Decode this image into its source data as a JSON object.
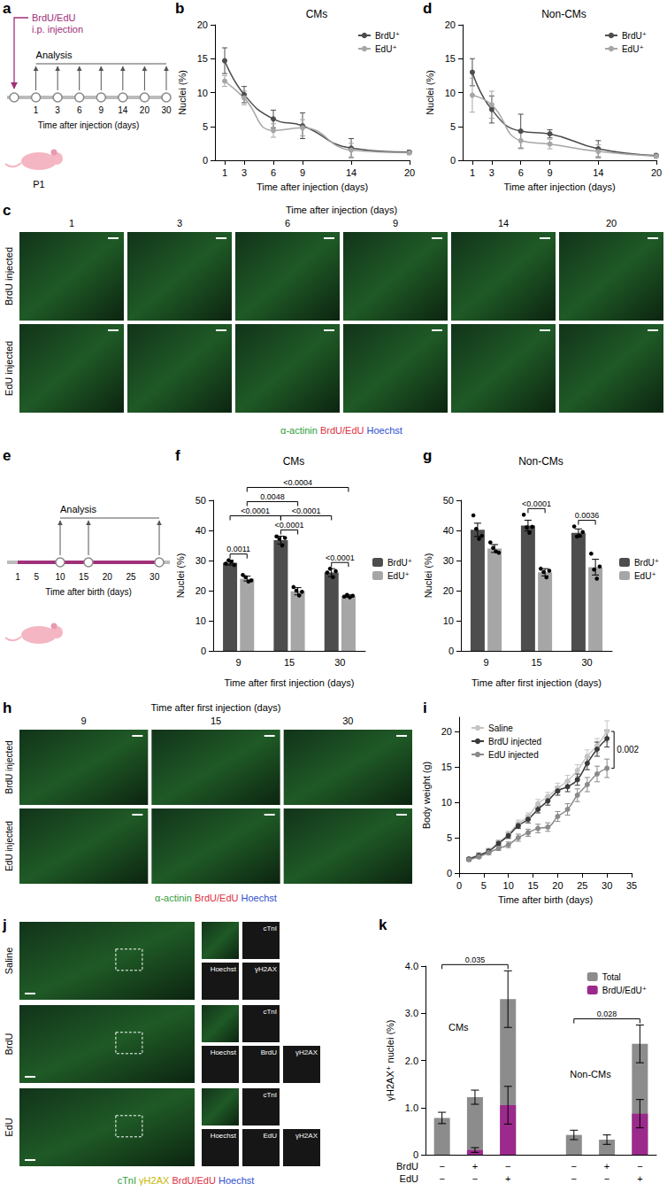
{
  "diagram_a": {
    "letter": "a",
    "injection_lines": [
      "BrdU/EdU",
      "i.p. injection"
    ],
    "analysis": "Analysis",
    "timepoints": [
      "1",
      "3",
      "6",
      "9",
      "14",
      "20",
      "30"
    ],
    "axis_label": "Time after injection (days)",
    "animal": "P1"
  },
  "images_c": {
    "letter": "c",
    "header": "Time after injection (days)",
    "columns": [
      "1",
      "3",
      "6",
      "9",
      "14",
      "20"
    ],
    "rows": [
      "BrdU injected",
      "EdU injected"
    ],
    "caption": [
      {
        "text": "α-actinin",
        "color": "#2f9e3a"
      },
      {
        "text": "BrdU/EdU",
        "color": "#e0303f"
      },
      {
        "text": "Hoechst",
        "color": "#2f4fd0"
      }
    ]
  },
  "diagram_e": {
    "letter": "e",
    "analysis": "Analysis",
    "ticks": [
      1,
      5,
      10,
      15,
      20,
      25,
      30
    ],
    "analysis_days": [
      10,
      16,
      31
    ],
    "injection_days": [
      1,
      31
    ],
    "axis_label": "Time after birth (days)"
  },
  "images_h": {
    "letter": "h",
    "header": "Time after first injection (days)",
    "columns": [
      "9",
      "15",
      "30"
    ],
    "rows": [
      "BrdU injected",
      "EdU injected"
    ],
    "caption": [
      {
        "text": "α-actinin",
        "color": "#2f9e3a"
      },
      {
        "text": "BrdU/EdU",
        "color": "#e0303f"
      },
      {
        "text": "Hoechst",
        "color": "#2f4fd0"
      }
    ]
  },
  "images_j": {
    "letter": "j",
    "rows": [
      {
        "label": "Saline",
        "insets": [
          "cTnI",
          "Hoechst",
          "γH2AX"
        ]
      },
      {
        "label": "BrdU",
        "insets": [
          "cTnI",
          "Hoechst",
          "BrdU",
          "γH2AX"
        ]
      },
      {
        "label": "EdU",
        "insets": [
          "cTnI",
          "Hoechst",
          "EdU",
          "γH2AX"
        ]
      }
    ],
    "caption": [
      {
        "text": "cTnI",
        "color": "#2f9e3a"
      },
      {
        "text": "γH2AX",
        "color": "#c9b800"
      },
      {
        "text": "BrdU/EdU",
        "color": "#e0303f"
      },
      {
        "text": "Hoechst",
        "color": "#2f4fd0"
      }
    ]
  },
  "chart_data": [
    {
      "letter": "b",
      "type": "line",
      "title": "CMs",
      "x_label": "Time after injection (days)",
      "y_label": "Nuclei (%)",
      "x": [
        1,
        3,
        6,
        9,
        14,
        20
      ],
      "xlim": [
        0,
        20
      ],
      "xticks": [
        1,
        3,
        6,
        9,
        14,
        20
      ],
      "ylim": [
        0,
        20
      ],
      "yticks": [
        0,
        5,
        10,
        15,
        20
      ],
      "grid": false,
      "legend": "top-right",
      "marker": "circle",
      "series": [
        {
          "name": "BrdU⁺",
          "color": "#4d4d4d",
          "values": [
            14.7,
            9.7,
            6.1,
            5.1,
            1.8,
            1.2
          ],
          "errors": [
            1.9,
            1.2,
            1.3,
            1.9,
            1.4,
            0.3
          ]
        },
        {
          "name": "EdU⁺",
          "color": "#a6a6a6",
          "values": [
            11.7,
            9.2,
            4.4,
            4.8,
            1.5,
            1.1
          ],
          "errors": [
            0.8,
            1.0,
            1.0,
            1.2,
            1.0,
            0.3
          ]
        }
      ]
    },
    {
      "letter": "d",
      "type": "line",
      "title": "Non-CMs",
      "x_label": "Time after injection (days)",
      "y_label": "Nuclei (%)",
      "x": [
        1,
        3,
        6,
        9,
        14,
        20
      ],
      "xlim": [
        0,
        20
      ],
      "xticks": [
        1,
        3,
        6,
        9,
        14,
        20
      ],
      "ylim": [
        0,
        20
      ],
      "yticks": [
        0,
        5,
        10,
        15,
        20
      ],
      "grid": false,
      "legend": "top-right",
      "marker": "circle",
      "series": [
        {
          "name": "BrdU⁺",
          "color": "#4d4d4d",
          "values": [
            13.0,
            7.5,
            4.3,
            3.9,
            1.7,
            0.7
          ],
          "errors": [
            2.0,
            2.0,
            2.5,
            0.6,
            1.2,
            0.3
          ]
        },
        {
          "name": "EdU⁺",
          "color": "#a6a6a6",
          "values": [
            9.6,
            8.2,
            2.9,
            2.4,
            1.3,
            0.6
          ],
          "errors": [
            2.5,
            2.0,
            1.2,
            0.7,
            1.0,
            0.3
          ]
        }
      ]
    },
    {
      "letter": "f",
      "type": "bar",
      "title": "CMs",
      "categories": [
        "9",
        "15",
        "30"
      ],
      "x_label": "Time after first injection (days)",
      "y_label": "Nuclei (%)",
      "ylim": [
        0,
        50
      ],
      "yticks": [
        0,
        10,
        20,
        30,
        40,
        50
      ],
      "grid": false,
      "legend": "right",
      "series": [
        {
          "name": "BrdU⁺",
          "color": "#4d4d4d",
          "values": [
            29.3,
            36.8,
            26.0
          ],
          "errors": [
            0.8,
            1.3,
            1.3
          ],
          "points": [
            [
              29.0,
              30.1,
              29.6,
              28.5
            ],
            [
              38.0,
              37.2,
              35.0,
              37.5
            ],
            [
              26.0,
              27.3,
              24.5,
              26.5
            ]
          ]
        },
        {
          "name": "EdU⁺",
          "color": "#a6a6a6",
          "values": [
            24.0,
            19.8,
            18.2
          ],
          "errors": [
            0.8,
            1.2,
            0.4
          ],
          "points": [
            [
              25.2,
              24.5,
              23.0,
              23.4
            ],
            [
              21.2,
              20.0,
              18.4,
              19.6
            ],
            [
              18.0,
              18.6,
              17.8,
              18.3
            ]
          ]
        }
      ],
      "comparisons": [
        {
          "from": [
            "BrdU⁺",
            "9"
          ],
          "to": [
            "EdU⁺",
            "9"
          ],
          "label": "0.0011"
        },
        {
          "from": [
            "BrdU⁺",
            "15"
          ],
          "to": [
            "EdU⁺",
            "15"
          ],
          "label": "<0.0001"
        },
        {
          "from": [
            "BrdU⁺",
            "30"
          ],
          "to": [
            "EdU⁺",
            "30"
          ],
          "label": "<0.0001"
        },
        {
          "from": [
            "BrdU⁺",
            "9"
          ],
          "to": [
            "BrdU⁺",
            "15"
          ],
          "label": "<0.0001"
        },
        {
          "from": [
            "BrdU⁺",
            "15"
          ],
          "to": [
            "BrdU⁺",
            "30"
          ],
          "label": "<0.0001"
        },
        {
          "from": [
            "EdU⁺",
            "9"
          ],
          "to": [
            "EdU⁺",
            "15"
          ],
          "label": "0.0048"
        },
        {
          "from": [
            "EdU⁺",
            "9"
          ],
          "to": [
            "EdU⁺",
            "30"
          ],
          "label": "<0.0004"
        }
      ]
    },
    {
      "letter": "g",
      "type": "bar",
      "title": "Non-CMs",
      "categories": [
        "9",
        "15",
        "30"
      ],
      "x_label": "Time after first injection (days)",
      "y_label": "Nuclei (%)",
      "ylim": [
        0,
        50
      ],
      "yticks": [
        0,
        10,
        20,
        30,
        40,
        50
      ],
      "grid": false,
      "legend": "right",
      "series": [
        {
          "name": "BrdU⁺",
          "color": "#4d4d4d",
          "values": [
            40.2,
            41.6,
            39.2
          ],
          "errors": [
            2.2,
            1.8,
            1.3
          ],
          "points": [
            [
              45.0,
              40.5,
              37.2,
              38.2
            ],
            [
              45.2,
              41.0,
              39.2,
              41.2
            ],
            [
              41.3,
              38.0,
              38.2,
              39.5
            ]
          ]
        },
        {
          "name": "EdU⁺",
          "color": "#a6a6a6",
          "values": [
            34.0,
            26.1,
            27.8
          ],
          "errors": [
            1.3,
            1.2,
            2.6
          ],
          "points": [
            [
              36.0,
              34.2,
              33.0,
              32.6
            ],
            [
              27.3,
              26.2,
              24.4,
              26.6
            ],
            [
              32.3,
              27.0,
              24.0,
              28.0
            ]
          ]
        }
      ],
      "comparisons": [
        {
          "from": [
            "BrdU⁺",
            "15"
          ],
          "to": [
            "EdU⁺",
            "15"
          ],
          "label": "<0.0001"
        },
        {
          "from": [
            "BrdU⁺",
            "30"
          ],
          "to": [
            "EdU⁺",
            "30"
          ],
          "label": "0.0036"
        }
      ]
    },
    {
      "letter": "i",
      "type": "line",
      "x_label": "Time after birth (days)",
      "y_label": "Body weight (g)",
      "x": [
        2,
        4,
        6,
        8,
        10,
        12,
        14,
        16,
        18,
        20,
        22,
        24,
        26,
        28,
        30
      ],
      "xlim": [
        0,
        35
      ],
      "xticks": [
        0,
        5,
        10,
        15,
        20,
        25,
        30,
        35
      ],
      "ylim": [
        0,
        22
      ],
      "yticks": [
        0,
        5,
        10,
        15,
        20
      ],
      "grid": false,
      "legend": "top-left",
      "marker": "circle",
      "series": [
        {
          "name": "Saline",
          "color": "#c4c4c4",
          "values": [
            2.0,
            2.6,
            3.2,
            4.3,
            5.5,
            7.0,
            8.0,
            9.8,
            10.8,
            12.0,
            13.0,
            14.5,
            16.5,
            18.0,
            20.0
          ],
          "errors": [
            0.2,
            0.3,
            0.3,
            0.4,
            0.4,
            0.5,
            0.5,
            0.6,
            0.6,
            0.7,
            0.8,
            0.8,
            0.9,
            1.0,
            1.5
          ]
        },
        {
          "name": "BrdU injected",
          "color": "#3a3a3a",
          "values": [
            2.0,
            2.5,
            3.1,
            4.2,
            5.3,
            6.7,
            7.6,
            9.0,
            10.2,
            11.6,
            12.2,
            13.2,
            15.5,
            17.5,
            19.0
          ],
          "errors": [
            0.2,
            0.3,
            0.3,
            0.3,
            0.4,
            0.4,
            0.5,
            0.5,
            0.6,
            0.6,
            0.7,
            0.8,
            0.9,
            1.0,
            1.2
          ]
        },
        {
          "name": "EdU injected",
          "color": "#8a8a8a",
          "values": [
            1.9,
            2.3,
            2.9,
            3.5,
            4.0,
            5.0,
            5.7,
            6.3,
            6.5,
            8.0,
            9.0,
            11.0,
            12.5,
            14.0,
            14.8
          ],
          "errors": [
            0.2,
            0.2,
            0.3,
            0.3,
            0.4,
            0.5,
            0.5,
            0.6,
            0.6,
            0.7,
            0.8,
            0.9,
            1.0,
            1.1,
            1.3
          ]
        }
      ],
      "comparisons": [
        {
          "x": 30,
          "between": [
            "Saline",
            "EdU injected"
          ],
          "label": "0.002"
        }
      ]
    },
    {
      "letter": "k",
      "type": "overlay",
      "y_label": "γH2AX⁺ nuclei (%)",
      "ylim": [
        0,
        4
      ],
      "yticks": [
        0,
        {
          "value": 1,
          "label": "1.0"
        },
        {
          "value": 2,
          "label": "2.0"
        },
        {
          "value": 3,
          "label": "3.0"
        },
        {
          "value": 4,
          "label": "4.0"
        }
      ],
      "grid": false,
      "legend": "top-right",
      "x_rows": [
        {
          "label": "BrdU",
          "values": [
            "−",
            "+",
            "−",
            null,
            "−",
            "+",
            "−"
          ]
        },
        {
          "label": "EdU",
          "values": [
            "−",
            "−",
            "+",
            null,
            "−",
            "−",
            "+"
          ]
        }
      ],
      "groups": [
        {
          "label": "CMs",
          "positions": [
            0,
            1,
            2
          ]
        },
        {
          "label": "Non-CMs",
          "positions": [
            4,
            5,
            6
          ]
        }
      ],
      "series": [
        {
          "name": "Total",
          "color": "#8c8c8c",
          "values": [
            0.78,
            1.22,
            3.3,
            null,
            0.42,
            0.32,
            2.35
          ],
          "errors": [
            0.12,
            0.15,
            0.6,
            null,
            0.1,
            0.1,
            0.4
          ]
        },
        {
          "name": "BrdU/EdU⁺",
          "color": "#9c2a8c",
          "values": [
            0,
            0.1,
            1.05,
            null,
            0,
            0,
            0.87
          ],
          "errors": [
            0,
            0.05,
            0.4,
            null,
            0,
            0,
            0.3
          ]
        }
      ],
      "comparisons": [
        {
          "from": 0,
          "to": 2,
          "label": "0.035"
        },
        {
          "from": 4,
          "to": 6,
          "label": "0.028"
        }
      ]
    }
  ]
}
